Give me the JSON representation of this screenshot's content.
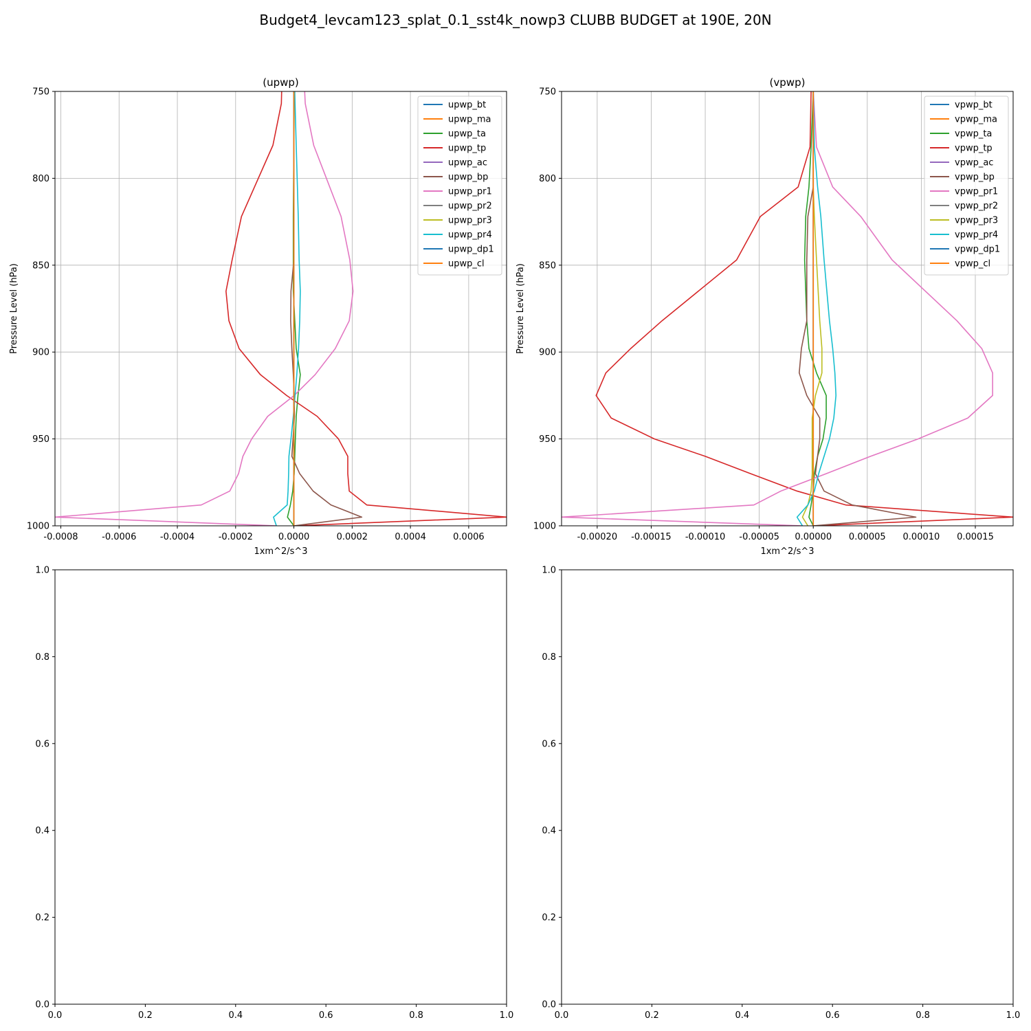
{
  "suptitle": "Budget4_levcam123_splat_0.1_sst4k_nowp3 CLUBB BUDGET at 190E, 20N",
  "colors": [
    "#1f77b4",
    "#ff7f0e",
    "#2ca02c",
    "#d62728",
    "#9467bd",
    "#8c564b",
    "#e377c2",
    "#7f7f7f",
    "#bcbd22",
    "#17becf",
    "#1f77b4",
    "#ff7f0e"
  ],
  "chart_data": [
    {
      "type": "line",
      "title": "(upwp)",
      "xlabel": "1xm^2/s^3",
      "ylabel": "Pressure Level (hPa)",
      "xlim": [
        -0.00082,
        0.00073
      ],
      "ylim": [
        1000,
        750
      ],
      "xticks": [
        "-0.0008",
        "-0.0006",
        "-0.0004",
        "-0.0002",
        "0.0000",
        "0.0002",
        "0.0004",
        "0.0006"
      ],
      "yticks": [
        "750",
        "800",
        "850",
        "900",
        "950",
        "1000"
      ],
      "grid": true,
      "legend_position": "upper right",
      "y": [
        750,
        757,
        781,
        822,
        847,
        865,
        882,
        898,
        913,
        925,
        937,
        950,
        960,
        970,
        980,
        988,
        995,
        1000
      ],
      "series": [
        {
          "name": "upwp_bt",
          "values": [
            0,
            0,
            0,
            0,
            0,
            0,
            0,
            0,
            0,
            0,
            0,
            0,
            0,
            0,
            0,
            0,
            0,
            0
          ]
        },
        {
          "name": "upwp_ma",
          "values": [
            0,
            0,
            0,
            0,
            0,
            0,
            0,
            0,
            0,
            0,
            0,
            0,
            0,
            0,
            0,
            0,
            0,
            0
          ]
        },
        {
          "name": "upwp_ta",
          "values": [
            1e-06,
            1e-06,
            0,
            -2e-06,
            -2e-06,
            -2e-06,
            3e-06,
            8e-06,
            2.2e-05,
            1.4e-05,
            8e-06,
            5e-06,
            3e-06,
            1e-06,
            -4e-06,
            -1.2e-05,
            -2.2e-05,
            0
          ]
        },
        {
          "name": "upwp_tp",
          "values": [
            -4.2e-05,
            -4.3e-05,
            -7.2e-05,
            -0.00018,
            -0.000212,
            -0.000233,
            -0.000223,
            -0.000188,
            -0.000115,
            -2.5e-05,
            8e-05,
            0.000153,
            0.000185,
            0.000185,
            0.00019,
            0.00025,
            0.00073,
            0
          ]
        },
        {
          "name": "upwp_ac",
          "values": [
            0,
            0,
            0,
            0,
            0,
            0,
            0,
            0,
            0,
            0,
            0,
            0,
            0,
            0,
            0,
            0,
            0,
            0
          ]
        },
        {
          "name": "upwp_bp",
          "values": [
            0,
            0,
            0,
            0,
            0,
            -1e-05,
            -1.1e-05,
            -7e-06,
            -2e-06,
            1e-06,
            2e-06,
            -3e-06,
            -7e-06,
            2e-05,
            6.6e-05,
            0.000127,
            0.000233,
            0
          ]
        },
        {
          "name": "upwp_pr1",
          "values": [
            3.7e-05,
            3.9e-05,
            6.8e-05,
            0.000162,
            0.000192,
            0.000203,
            0.00019,
            0.000142,
            7.3e-05,
            1e-06,
            -9e-05,
            -0.000145,
            -0.000175,
            -0.00019,
            -0.00022,
            -0.000318,
            -0.00082,
            -6e-05
          ]
        },
        {
          "name": "upwp_pr2",
          "values": [
            0,
            0,
            0,
            0,
            0,
            0,
            0,
            0,
            0,
            0,
            0,
            0,
            0,
            0,
            0,
            0,
            0,
            0
          ]
        },
        {
          "name": "upwp_pr3",
          "values": [
            0,
            0,
            0,
            0,
            0,
            0,
            0,
            0,
            0,
            0,
            0,
            0,
            0,
            0,
            0,
            0,
            0,
            0
          ]
        },
        {
          "name": "upwp_pr4",
          "values": [
            3e-06,
            4e-06,
            8e-06,
            1.5e-05,
            1.8e-05,
            2.2e-05,
            2e-05,
            1.6e-05,
            1e-05,
            4e-06,
            -2e-06,
            -1e-05,
            -1.7e-05,
            -1.8e-05,
            -2e-05,
            -2.3e-05,
            -7e-05,
            -6e-05
          ]
        },
        {
          "name": "upwp_dp1",
          "values": [
            0,
            0,
            0,
            0,
            0,
            0,
            0,
            0,
            0,
            0,
            0,
            0,
            0,
            0,
            0,
            0,
            0,
            0
          ]
        },
        {
          "name": "upwp_cl",
          "values": [
            0,
            0,
            0,
            0,
            0,
            0,
            0,
            0,
            0,
            0,
            0,
            0,
            0,
            0,
            0,
            0,
            0,
            0
          ]
        }
      ]
    },
    {
      "type": "line",
      "title": "(vpwp)",
      "xlabel": "1xm^2/s^3",
      "ylabel": "Pressure Level (hPa)",
      "xlim": [
        -0.000233,
        0.000185
      ],
      "ylim": [
        1000,
        750
      ],
      "xticks": [
        "-0.00020",
        "-0.00015",
        "-0.00010",
        "-0.00005",
        "0.00000",
        "0.00005",
        "0.00010",
        "0.00015"
      ],
      "yticks": [
        "750",
        "800",
        "850",
        "900",
        "950",
        "1000"
      ],
      "grid": true,
      "legend_position": "upper right",
      "y": [
        750,
        782,
        805,
        822,
        847,
        882,
        898,
        912,
        925,
        938,
        950,
        960,
        970,
        980,
        988,
        995,
        1000
      ],
      "series": [
        {
          "name": "vpwp_bt",
          "values": [
            0,
            0,
            0,
            0,
            0,
            0,
            0,
            0,
            0,
            0,
            0,
            0,
            0,
            0,
            0,
            0,
            0
          ]
        },
        {
          "name": "vpwp_ma",
          "values": [
            0,
            0,
            0,
            0,
            0,
            0,
            0,
            0,
            0,
            0,
            0,
            0,
            0,
            0,
            0,
            0,
            0
          ]
        },
        {
          "name": "vpwp_ta",
          "values": [
            0,
            -2e-06,
            -4e-06,
            -7e-06,
            -8e-06,
            -6e-06,
            -4e-06,
            3e-06,
            1.2e-05,
            1.2e-05,
            9e-06,
            4e-06,
            1e-06,
            0,
            -2e-06,
            -4e-06,
            0
          ]
        },
        {
          "name": "vpwp_tp",
          "values": [
            -2e-06,
            -3e-06,
            -1.4e-05,
            -4.9e-05,
            -7.1e-05,
            -0.00014,
            -0.000169,
            -0.000192,
            -0.000201,
            -0.000187,
            -0.000147,
            -0.0001,
            -5.8e-05,
            -1.5e-05,
            3e-05,
            0.000185,
            0
          ]
        },
        {
          "name": "vpwp_ac",
          "values": [
            0,
            0,
            0,
            0,
            0,
            0,
            0,
            0,
            0,
            0,
            0,
            0,
            0,
            0,
            0,
            0,
            0
          ]
        },
        {
          "name": "vpwp_bp",
          "values": [
            0,
            0,
            0,
            -5e-06,
            -6e-06,
            -6e-06,
            -1.1e-05,
            -1.3e-05,
            -6e-06,
            6e-06,
            6e-06,
            4e-06,
            2e-06,
            1e-05,
            3.6e-05,
            9.5e-05,
            0
          ]
        },
        {
          "name": "vpwp_pr1",
          "values": [
            0,
            3e-06,
            1.8e-05,
            4.4e-05,
            7.3e-05,
            0.000133,
            0.000156,
            0.000166,
            0.000166,
            0.000143,
            9.7e-05,
            5.3e-05,
            1.2e-05,
            -3e-05,
            -5.5e-05,
            -0.000233,
            -1e-05
          ]
        },
        {
          "name": "vpwp_pr2",
          "values": [
            0,
            0,
            0,
            0,
            0,
            0,
            0,
            0,
            0,
            0,
            0,
            0,
            0,
            0,
            0,
            0,
            0
          ]
        },
        {
          "name": "vpwp_pr3",
          "values": [
            0,
            0,
            0,
            1e-06,
            3e-06,
            6e-06,
            8e-06,
            8e-06,
            2e-06,
            -1e-06,
            -1e-06,
            -1e-06,
            -1e-06,
            -2e-06,
            -5e-06,
            -1e-05,
            -5e-06
          ]
        },
        {
          "name": "vpwp_pr4",
          "values": [
            0,
            1e-06,
            4e-06,
            7e-06,
            1e-05,
            1.5e-05,
            1.8e-05,
            2e-05,
            2.1e-05,
            1.9e-05,
            1.5e-05,
            1e-05,
            5e-06,
            1e-06,
            -5e-06,
            -1.5e-05,
            -1e-05
          ]
        },
        {
          "name": "vpwp_dp1",
          "values": [
            0,
            0,
            0,
            0,
            0,
            0,
            0,
            0,
            0,
            0,
            0,
            0,
            0,
            0,
            0,
            0,
            0
          ]
        },
        {
          "name": "vpwp_cl",
          "values": [
            0,
            0,
            0,
            0,
            0,
            0,
            0,
            0,
            0,
            0,
            0,
            0,
            0,
            0,
            0,
            0,
            0
          ]
        }
      ]
    },
    {
      "type": "line",
      "title": "",
      "xlim": [
        0,
        1
      ],
      "ylim": [
        0,
        1
      ],
      "xticks": [
        "0.0",
        "0.2",
        "0.4",
        "0.6",
        "0.8",
        "1.0"
      ],
      "yticks": [
        "0.0",
        "0.2",
        "0.4",
        "0.6",
        "0.8",
        "1.0"
      ],
      "grid": false,
      "series": []
    },
    {
      "type": "line",
      "title": "",
      "xlim": [
        0,
        1
      ],
      "ylim": [
        0,
        1
      ],
      "xticks": [
        "0.0",
        "0.2",
        "0.4",
        "0.6",
        "0.8",
        "1.0"
      ],
      "yticks": [
        "0.0",
        "0.2",
        "0.4",
        "0.6",
        "0.8",
        "1.0"
      ],
      "grid": false,
      "series": []
    }
  ]
}
